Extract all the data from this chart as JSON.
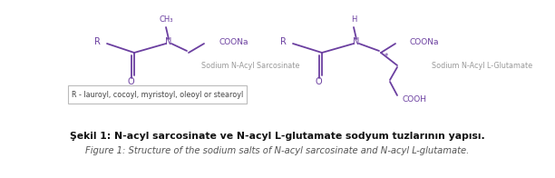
{
  "bg_color": "#ffffff",
  "structure_color": "#6B3FA0",
  "text_gray": "#888888",
  "title_line1": "Şekil 1: N-acyl sarcosinate ve N-acyl L-glutamate sodyum tuzlarının yapısı.",
  "title_line2": "Figure 1: Structure of the sodium salts of N-acyl sarcosinate and N-acyl L-glutamate.",
  "label_sarcosinate": "Sodium N-Acyl Sarcosinate",
  "label_glutamate": "Sodium N-Acyl L-Glutamate",
  "box_text": "R - lauroyl, cocoyl, myristoyl, oleoyl or stearoyl",
  "label_O1": "O",
  "label_O2": "O",
  "label_COOH": "COOH",
  "label_COONa1": "COONa",
  "label_COONa2": "COONa",
  "label_CH3": "CH₃",
  "label_H": "H",
  "label_R1": "R",
  "label_R2": "R",
  "label_N1": "N",
  "label_N2": "N",
  "label_star": "*"
}
